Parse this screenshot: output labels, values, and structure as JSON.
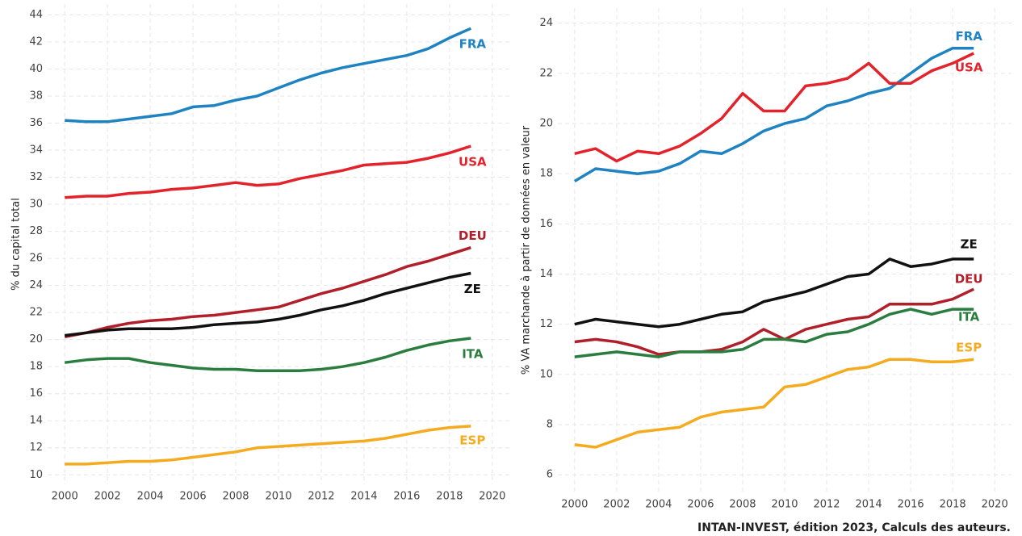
{
  "chart_data": [
    {
      "type": "line",
      "ylabel": "% du capital total",
      "x": [
        2000,
        2001,
        2002,
        2003,
        2004,
        2005,
        2006,
        2007,
        2008,
        2009,
        2010,
        2011,
        2012,
        2013,
        2014,
        2015,
        2016,
        2017,
        2018,
        2019
      ],
      "xlim": [
        1999.2,
        2020.8
      ],
      "xticks": [
        2000,
        2002,
        2004,
        2006,
        2008,
        2010,
        2012,
        2014,
        2016,
        2018,
        2020
      ],
      "ylim": [
        9.3,
        44.8
      ],
      "yticks": [
        10,
        12,
        14,
        16,
        18,
        20,
        22,
        24,
        26,
        28,
        30,
        32,
        34,
        36,
        38,
        40,
        42,
        44
      ],
      "grid": true,
      "series": [
        {
          "name": "FRA",
          "color": "#1f83c2",
          "values": [
            36.2,
            36.1,
            36.1,
            36.3,
            36.5,
            36.7,
            37.2,
            37.3,
            37.7,
            38.0,
            38.6,
            39.2,
            39.7,
            40.1,
            40.4,
            40.7,
            41.0,
            41.5,
            42.3,
            43.0
          ]
        },
        {
          "name": "USA",
          "color": "#e3232b",
          "values": [
            30.5,
            30.6,
            30.6,
            30.8,
            30.9,
            31.1,
            31.2,
            31.4,
            31.6,
            31.4,
            31.5,
            31.9,
            32.2,
            32.5,
            32.9,
            33.0,
            33.1,
            33.4,
            33.8,
            34.3
          ]
        },
        {
          "name": "DEU",
          "color": "#b01f2a",
          "values": [
            20.2,
            20.5,
            20.9,
            21.2,
            21.4,
            21.5,
            21.7,
            21.8,
            22.0,
            22.2,
            22.4,
            22.9,
            23.4,
            23.8,
            24.3,
            24.8,
            25.4,
            25.8,
            26.3,
            26.8
          ]
        },
        {
          "name": "ZE",
          "color": "#111111",
          "values": [
            20.3,
            20.5,
            20.7,
            20.8,
            20.8,
            20.8,
            20.9,
            21.1,
            21.2,
            21.3,
            21.5,
            21.8,
            22.2,
            22.5,
            22.9,
            23.4,
            23.8,
            24.2,
            24.6,
            24.9
          ]
        },
        {
          "name": "ITA",
          "color": "#2a7d3f",
          "values": [
            18.3,
            18.5,
            18.6,
            18.6,
            18.3,
            18.1,
            17.9,
            17.8,
            17.8,
            17.7,
            17.7,
            17.7,
            17.8,
            18.0,
            18.3,
            18.7,
            19.2,
            19.6,
            19.9,
            20.1
          ]
        },
        {
          "name": "ESP",
          "color": "#f5ab1f",
          "values": [
            10.8,
            10.8,
            10.9,
            11.0,
            11.0,
            11.1,
            11.3,
            11.5,
            11.7,
            12.0,
            12.1,
            12.2,
            12.3,
            12.4,
            12.5,
            12.7,
            13.0,
            13.3,
            13.5,
            13.6
          ]
        }
      ]
    },
    {
      "type": "line",
      "ylabel": "% VA marchande à partir de données en valeur",
      "x": [
        2000,
        2001,
        2002,
        2003,
        2004,
        2005,
        2006,
        2007,
        2008,
        2009,
        2010,
        2011,
        2012,
        2013,
        2014,
        2015,
        2016,
        2017,
        2018,
        2019
      ],
      "xlim": [
        1999.2,
        2020.8
      ],
      "xticks": [
        2000,
        2002,
        2004,
        2006,
        2008,
        2010,
        2012,
        2014,
        2016,
        2018,
        2020
      ],
      "ylim": [
        5.3,
        24.6
      ],
      "yticks": [
        6,
        8,
        10,
        12,
        14,
        16,
        18,
        20,
        22,
        24
      ],
      "grid": true,
      "series": [
        {
          "name": "FRA",
          "color": "#1f83c2",
          "values": [
            17.7,
            18.2,
            18.1,
            18.0,
            18.1,
            18.4,
            18.9,
            18.8,
            19.2,
            19.7,
            20.0,
            20.2,
            20.7,
            20.9,
            21.2,
            21.4,
            22.0,
            22.6,
            23.0,
            23.0
          ]
        },
        {
          "name": "USA",
          "color": "#e3232b",
          "values": [
            18.8,
            19.0,
            18.5,
            18.9,
            18.8,
            19.1,
            19.6,
            20.2,
            21.2,
            20.5,
            20.5,
            21.5,
            21.6,
            21.8,
            22.4,
            21.6,
            21.6,
            22.1,
            22.4,
            22.8
          ]
        },
        {
          "name": "ZE",
          "color": "#111111",
          "values": [
            12.0,
            12.2,
            12.1,
            12.0,
            11.9,
            12.0,
            12.2,
            12.4,
            12.5,
            12.9,
            13.1,
            13.3,
            13.6,
            13.9,
            14.0,
            14.6,
            14.3,
            14.4,
            14.6,
            14.6
          ]
        },
        {
          "name": "DEU",
          "color": "#b01f2a",
          "values": [
            11.3,
            11.4,
            11.3,
            11.1,
            10.8,
            10.9,
            10.9,
            11.0,
            11.3,
            11.8,
            11.4,
            11.8,
            12.0,
            12.2,
            12.3,
            12.8,
            12.8,
            12.8,
            13.0,
            13.4
          ]
        },
        {
          "name": "ITA",
          "color": "#2a7d3f",
          "values": [
            10.7,
            10.8,
            10.9,
            10.8,
            10.7,
            10.9,
            10.9,
            10.9,
            11.0,
            11.4,
            11.4,
            11.3,
            11.6,
            11.7,
            12.0,
            12.4,
            12.6,
            12.4,
            12.6,
            12.6
          ]
        },
        {
          "name": "ESP",
          "color": "#f5ab1f",
          "values": [
            7.2,
            7.1,
            7.4,
            7.7,
            7.8,
            7.9,
            8.3,
            8.5,
            8.6,
            8.7,
            9.5,
            9.6,
            9.9,
            10.2,
            10.3,
            10.6,
            10.6,
            10.5,
            10.5,
            10.6
          ]
        }
      ]
    }
  ],
  "source": "INTAN-INVEST, édition 2023, Calculs des auteurs."
}
